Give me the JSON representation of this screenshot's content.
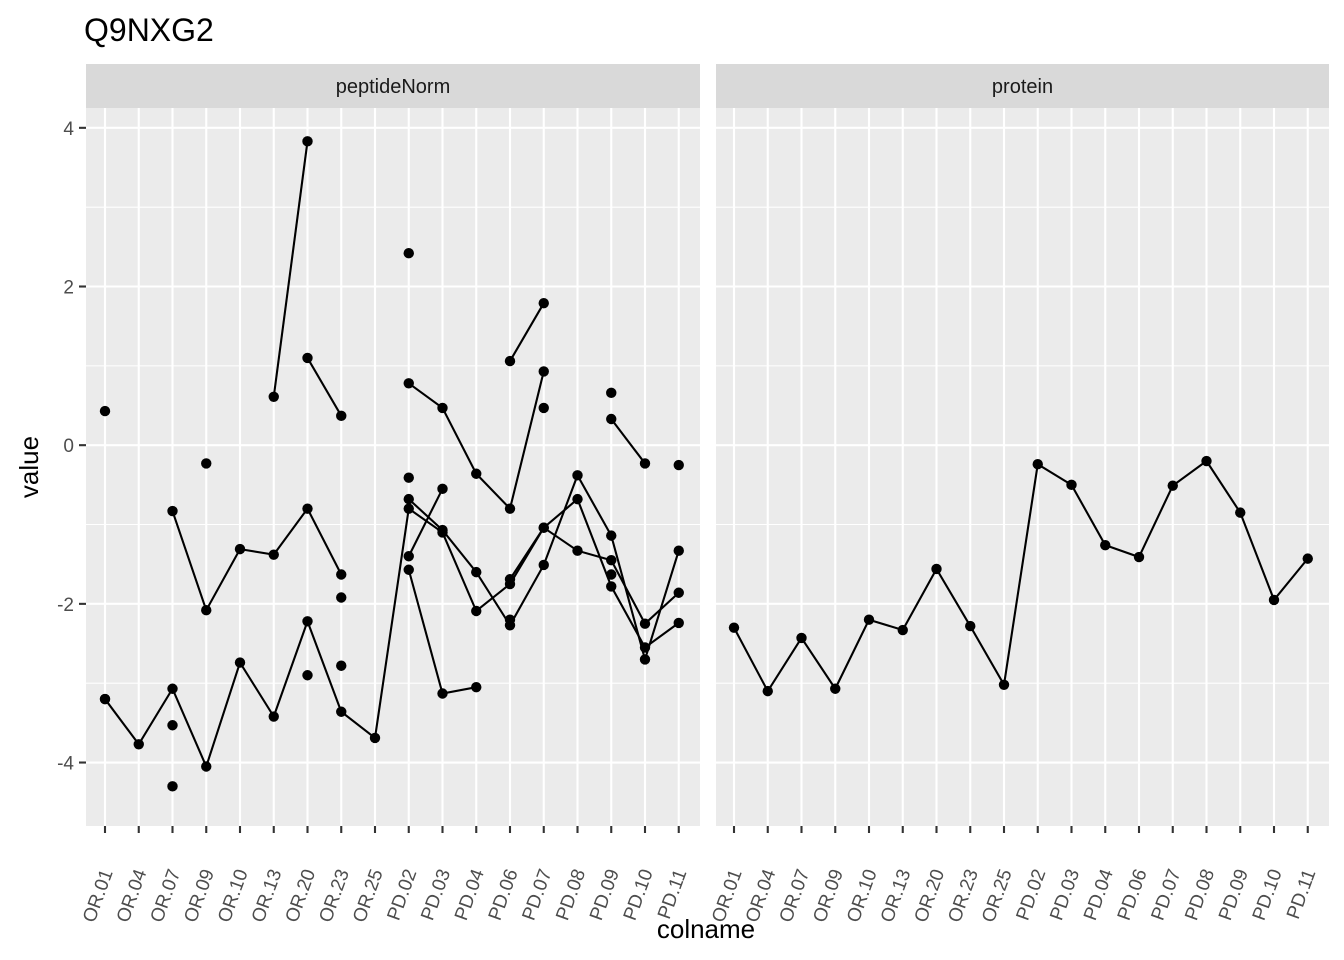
{
  "title": "Q9NXG2",
  "chart_data": {
    "type": "line",
    "title": "Q9NXG2",
    "xlabel": "colname",
    "ylabel": "value",
    "facets": [
      "peptideNorm",
      "protein"
    ],
    "categories": [
      "OR.01",
      "OR.04",
      "OR.07",
      "OR.09",
      "OR.10",
      "OR.13",
      "OR.20",
      "OR.23",
      "OR.25",
      "PD.02",
      "PD.03",
      "PD.04",
      "PD.06",
      "PD.07",
      "PD.08",
      "PD.09",
      "PD.10",
      "PD.11"
    ],
    "ylim": [
      -4.8,
      4.25
    ],
    "yticks": [
      -4,
      -2,
      0,
      2,
      4
    ],
    "ytick_labels": [
      "-4",
      "-2",
      "0",
      "2",
      "4"
    ],
    "grid": true,
    "series": [
      {
        "facet": "peptideNorm",
        "values": [
          null,
          null,
          null,
          null,
          null,
          0.61,
          3.83,
          null,
          null,
          null,
          null,
          null,
          null,
          null,
          null,
          null,
          null,
          null
        ]
      },
      {
        "facet": "peptideNorm",
        "values": [
          null,
          null,
          null,
          null,
          null,
          null,
          1.1,
          0.37,
          null,
          null,
          null,
          null,
          null,
          null,
          null,
          null,
          null,
          null
        ]
      },
      {
        "facet": "peptideNorm",
        "values": [
          null,
          null,
          -0.83,
          -2.08,
          -1.31,
          -1.38,
          -0.8,
          -1.63,
          null,
          null,
          null,
          null,
          null,
          null,
          null,
          null,
          null,
          null
        ]
      },
      {
        "facet": "peptideNorm",
        "values": [
          -3.2,
          -3.77,
          -3.07,
          -4.05,
          -2.74,
          -3.42,
          -2.22,
          -3.36,
          -3.69,
          -0.8,
          -1.1,
          -2.09,
          -1.75,
          -1.04,
          -1.33,
          -1.45,
          -2.25,
          -1.86
        ]
      },
      {
        "facet": "peptideNorm",
        "values": [
          null,
          null,
          null,
          null,
          null,
          null,
          null,
          null,
          null,
          0.78,
          0.47,
          -0.36,
          -0.8,
          0.93,
          null,
          null,
          null,
          null
        ]
      },
      {
        "facet": "peptideNorm",
        "values": [
          null,
          null,
          null,
          null,
          null,
          null,
          null,
          null,
          null,
          -1.57,
          -3.13,
          -3.05,
          null,
          null,
          null,
          null,
          null,
          null
        ]
      },
      {
        "facet": "peptideNorm",
        "values": [
          null,
          null,
          null,
          null,
          null,
          null,
          null,
          null,
          null,
          -1.4,
          -0.55,
          null,
          null,
          null,
          null,
          null,
          null,
          null
        ]
      },
      {
        "facet": "peptideNorm",
        "values": [
          null,
          null,
          null,
          null,
          null,
          null,
          null,
          null,
          null,
          -0.68,
          -1.07,
          -1.6,
          -2.27,
          -1.51,
          -0.38,
          -1.14,
          -2.7,
          -1.33
        ]
      },
      {
        "facet": "peptideNorm",
        "values": [
          null,
          null,
          null,
          null,
          null,
          null,
          null,
          null,
          null,
          null,
          null,
          null,
          -1.69,
          -1.04,
          -0.68,
          -1.78,
          -2.55,
          -2.24
        ]
      },
      {
        "facet": "peptideNorm",
        "values": [
          null,
          null,
          null,
          null,
          null,
          null,
          null,
          null,
          null,
          null,
          null,
          null,
          1.06,
          1.79,
          null,
          null,
          null,
          null
        ]
      },
      {
        "facet": "peptideNorm",
        "values": [
          null,
          null,
          null,
          null,
          null,
          null,
          null,
          null,
          null,
          null,
          null,
          null,
          null,
          null,
          null,
          0.33,
          -0.23,
          null
        ]
      },
      {
        "facet": "protein",
        "values": [
          -2.3,
          -3.1,
          -2.43,
          -3.07,
          -2.2,
          -2.33,
          -1.56,
          -2.28,
          -3.02,
          -0.24,
          -0.5,
          -1.26,
          -1.41,
          -0.51,
          -0.2,
          -0.85,
          -1.95,
          -1.43
        ]
      }
    ],
    "points": [
      {
        "facet": "peptideNorm",
        "x": "OR.01",
        "y": 0.43
      },
      {
        "facet": "peptideNorm",
        "x": "OR.01",
        "y": -3.2
      },
      {
        "facet": "peptideNorm",
        "x": "OR.07",
        "y": -3.53
      },
      {
        "facet": "peptideNorm",
        "x": "OR.07",
        "y": -4.3
      },
      {
        "facet": "peptideNorm",
        "x": "OR.09",
        "y": -0.23
      },
      {
        "facet": "peptideNorm",
        "x": "OR.20",
        "y": -2.9
      },
      {
        "facet": "peptideNorm",
        "x": "OR.23",
        "y": -1.92
      },
      {
        "facet": "peptideNorm",
        "x": "OR.23",
        "y": -2.78
      },
      {
        "facet": "peptideNorm",
        "x": "PD.02",
        "y": 2.42
      },
      {
        "facet": "peptideNorm",
        "x": "PD.02",
        "y": -0.41
      },
      {
        "facet": "peptideNorm",
        "x": "PD.06",
        "y": -2.2
      },
      {
        "facet": "peptideNorm",
        "x": "PD.07",
        "y": 0.47
      },
      {
        "facet": "peptideNorm",
        "x": "PD.09",
        "y": 0.66
      },
      {
        "facet": "peptideNorm",
        "x": "PD.09",
        "y": -1.63
      },
      {
        "facet": "peptideNorm",
        "x": "PD.11",
        "y": -0.25
      }
    ]
  }
}
